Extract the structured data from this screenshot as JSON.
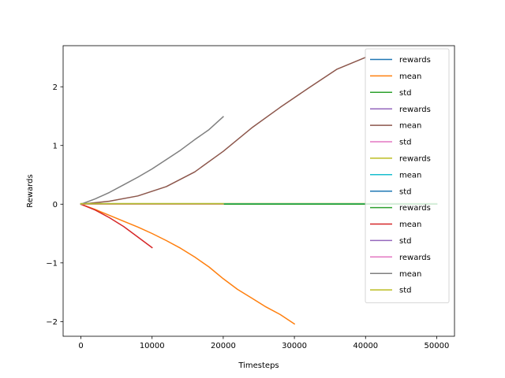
{
  "chart_data": {
    "type": "line",
    "xlabel": "Timesteps",
    "ylabel": "Rewards",
    "xlim": [
      -2500,
      52500
    ],
    "ylim": [
      -2.25,
      2.7
    ],
    "xticks": [
      0,
      10000,
      20000,
      30000,
      40000,
      50000
    ],
    "xtick_labels": [
      "0",
      "10000",
      "20000",
      "30000",
      "40000",
      "50000"
    ],
    "yticks": [
      -2,
      -1,
      0,
      1,
      2
    ],
    "ytick_labels": [
      "−2",
      "−1",
      "0",
      "1",
      "2"
    ],
    "grid": false,
    "legend_position": "top-right",
    "series": [
      {
        "name": "rewards",
        "color": "#1f77b4",
        "x": [
          0,
          10000
        ],
        "y": [
          0,
          0
        ]
      },
      {
        "name": "mean",
        "color": "#ff7f0e",
        "x": [
          0,
          2000,
          4000,
          6000,
          8000,
          10000,
          12000,
          14000,
          16000,
          18000,
          20000,
          22000,
          24000,
          26000,
          28000,
          30000
        ],
        "y": [
          0,
          -0.09,
          -0.19,
          -0.29,
          -0.39,
          -0.5,
          -0.62,
          -0.75,
          -0.9,
          -1.07,
          -1.27,
          -1.45,
          -1.6,
          -1.75,
          -1.88,
          -2.04
        ]
      },
      {
        "name": "std",
        "color": "#2ca02c",
        "x": [
          0,
          30000
        ],
        "y": [
          0,
          0
        ]
      },
      {
        "name": "rewards",
        "color": "#9467bd",
        "x": [
          0,
          40000
        ],
        "y": [
          0,
          0
        ]
      },
      {
        "name": "mean",
        "color": "#8c564b",
        "x": [
          0,
          4000,
          8000,
          12000,
          16000,
          20000,
          24000,
          28000,
          32000,
          36000,
          40000
        ],
        "y": [
          0,
          0.05,
          0.14,
          0.3,
          0.55,
          0.9,
          1.3,
          1.65,
          1.98,
          2.3,
          2.5
        ]
      },
      {
        "name": "std",
        "color": "#e377c2",
        "x": [
          0,
          40000
        ],
        "y": [
          0,
          0
        ]
      },
      {
        "name": "rewards",
        "color": "#bcbd22",
        "x": [
          0,
          50000
        ],
        "y": [
          0.01,
          0.01
        ]
      },
      {
        "name": "mean",
        "color": "#17becf",
        "x": [
          0,
          50000
        ],
        "y": [
          0.005,
          0.005
        ]
      },
      {
        "name": "std",
        "color": "#1f77b4",
        "x": [
          0,
          50000
        ],
        "y": [
          0,
          0
        ]
      },
      {
        "name": "rewards",
        "color": "#2ca02c",
        "x": [
          0,
          50000
        ],
        "y": [
          0,
          0
        ]
      },
      {
        "name": "mean",
        "color": "#d62728",
        "x": [
          0,
          2000,
          4000,
          6000,
          8000,
          10000
        ],
        "y": [
          0,
          -0.1,
          -0.23,
          -0.38,
          -0.56,
          -0.74
        ]
      },
      {
        "name": "std",
        "color": "#9467bd",
        "x": [
          0,
          10000
        ],
        "y": [
          0,
          0
        ]
      },
      {
        "name": "rewards",
        "color": "#e377c2",
        "x": [
          0,
          20000
        ],
        "y": [
          0,
          0
        ]
      },
      {
        "name": "mean",
        "color": "#7f7f7f",
        "x": [
          0,
          2000,
          4000,
          6000,
          8000,
          10000,
          12000,
          14000,
          16000,
          18000,
          20000
        ],
        "y": [
          0,
          0.09,
          0.2,
          0.33,
          0.46,
          0.6,
          0.76,
          0.92,
          1.1,
          1.27,
          1.49
        ]
      },
      {
        "name": "std",
        "color": "#bcbd22",
        "x": [
          0,
          20000
        ],
        "y": [
          0.005,
          0.005
        ]
      }
    ]
  }
}
